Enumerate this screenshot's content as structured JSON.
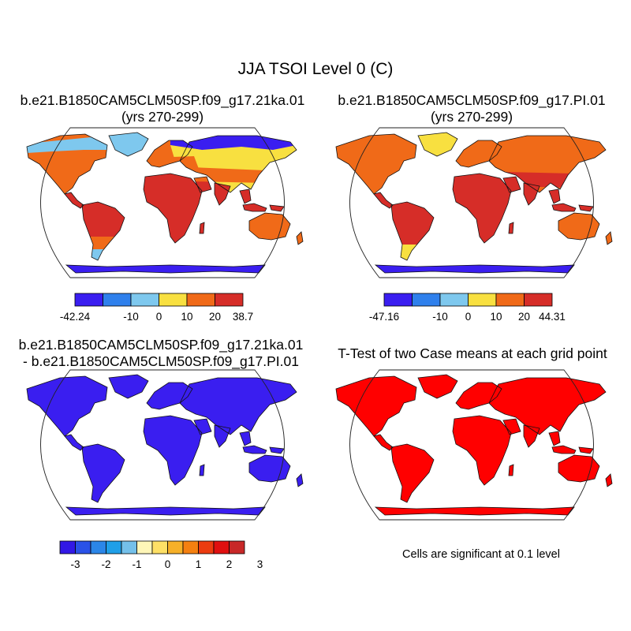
{
  "main_title": "JJA TSOI Level 0 (C)",
  "panels": [
    {
      "id": "p1",
      "title_line1": "b.e21.B1850CAM5CLM50SP.f09_g17.21ka.01",
      "title_line2": "(yrs 270-299)"
    },
    {
      "id": "p2",
      "title_line1": "b.e21.B1850CAM5CLM50SP.f09_g17.PI.01",
      "title_line2": "(yrs 270-299)"
    },
    {
      "id": "p3",
      "title_line1": "b.e21.B1850CAM5CLM50SP.f09_g17.21ka.01",
      "title_line2": "- b.e21.B1850CAM5CLM50SP.f09_g17.PI.01"
    },
    {
      "id": "p4",
      "title_line1": "T-Test of two Case means at each grid point"
    }
  ],
  "colorbars": [
    {
      "id": "cb1",
      "colors": [
        "#3a1ef0",
        "#2f80ec",
        "#7ec8ee",
        "#f8e040",
        "#f06a18",
        "#d62d28"
      ],
      "labels": [
        "-42.24",
        "-10",
        "0",
        "10",
        "20",
        "38.7"
      ]
    },
    {
      "id": "cb2",
      "colors": [
        "#3a1ef0",
        "#2f80ec",
        "#7ec8ee",
        "#f8e040",
        "#f06a18",
        "#d62d28"
      ],
      "labels": [
        "-47.16",
        "-10",
        "0",
        "10",
        "20",
        "44.31"
      ]
    },
    {
      "id": "cb3",
      "colors": [
        "#3218e6",
        "#2a52e8",
        "#2b86e8",
        "#1f9fe8",
        "#74c0ea",
        "#fef6b8",
        "#fde066",
        "#f6b028",
        "#f58010",
        "#ec3c10",
        "#e01010",
        "#c82828"
      ],
      "labels": [
        "-3",
        "-2",
        "-1",
        "0",
        "1",
        "2",
        "3"
      ]
    }
  ],
  "map_fills": {
    "p1": {
      "tropics": "#d62d28",
      "midlat": "#f06a18",
      "highlat": "#f8e040",
      "arctic": "#7ec8ee",
      "polar": "#3a1ef0"
    },
    "p2": {
      "tropics": "#d62d28",
      "midlat": "#f06a18",
      "highlat": "#f06a18",
      "arctic": "#f8e040",
      "polar": "#3a1ef0"
    },
    "p3": {
      "land": "#3a1ef0"
    },
    "p4": {
      "land": "#ff0000"
    }
  },
  "significance_note": "Cells are significant at 0.1 level"
}
